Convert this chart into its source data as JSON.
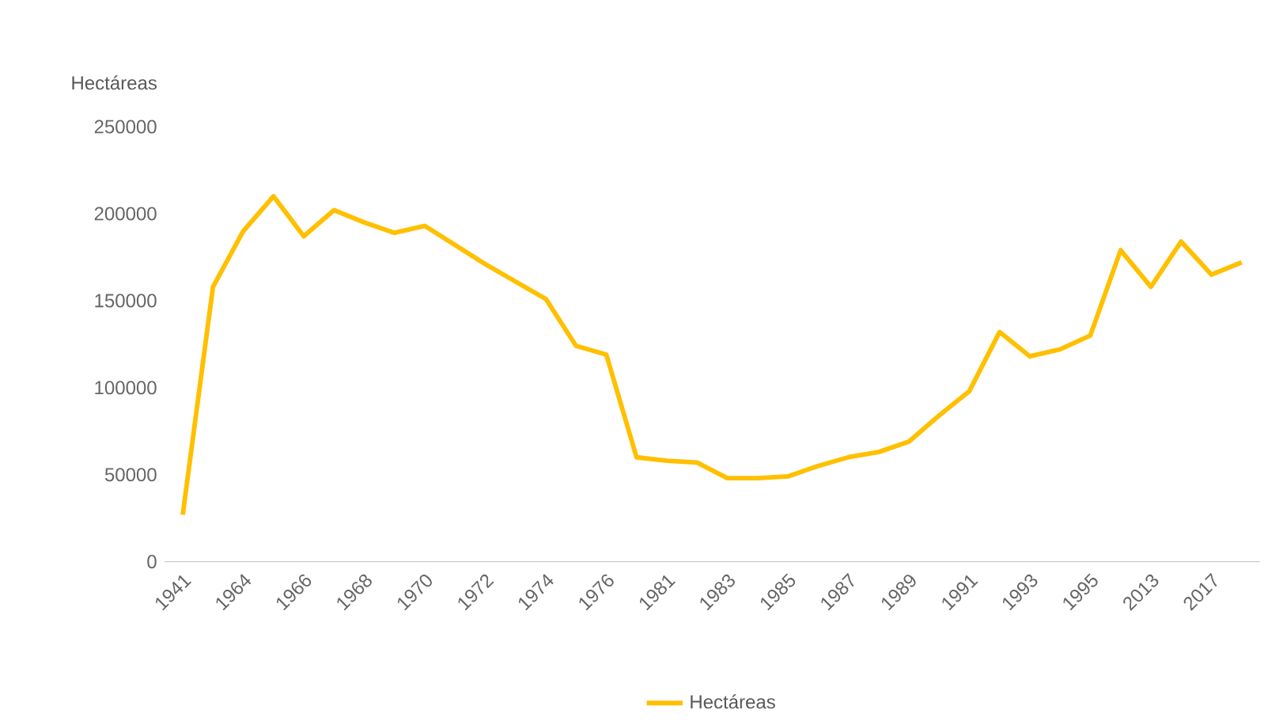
{
  "chart_data": {
    "type": "line",
    "ylabel": "Hectáreas",
    "categories": [
      "1941",
      null,
      "1964",
      null,
      "1966",
      null,
      "1968",
      null,
      "1970",
      null,
      "1972",
      null,
      "1974",
      null,
      "1976",
      null,
      "1981",
      null,
      "1983",
      null,
      "1985",
      null,
      "1987",
      null,
      "1989",
      null,
      "1991",
      null,
      "1993",
      null,
      "1995",
      null,
      "2013",
      null,
      "2017",
      null
    ],
    "series": [
      {
        "name": "Hectáreas",
        "color": "#ffc000",
        "values": [
          27000,
          158000,
          190000,
          210000,
          187000,
          202000,
          195000,
          189000,
          193000,
          182000,
          171000,
          161000,
          151000,
          124000,
          119000,
          60000,
          58000,
          57000,
          48000,
          48000,
          49000,
          55000,
          60000,
          63000,
          69000,
          84000,
          98000,
          132000,
          118000,
          122000,
          130000,
          179000,
          158000,
          184000,
          165000,
          172000
        ]
      }
    ],
    "ylim": [
      0,
      250000
    ],
    "yticks": [
      0,
      50000,
      100000,
      150000,
      200000,
      250000
    ],
    "legend": "bottom",
    "marker": "none",
    "line_style": "solid",
    "grid": false
  }
}
